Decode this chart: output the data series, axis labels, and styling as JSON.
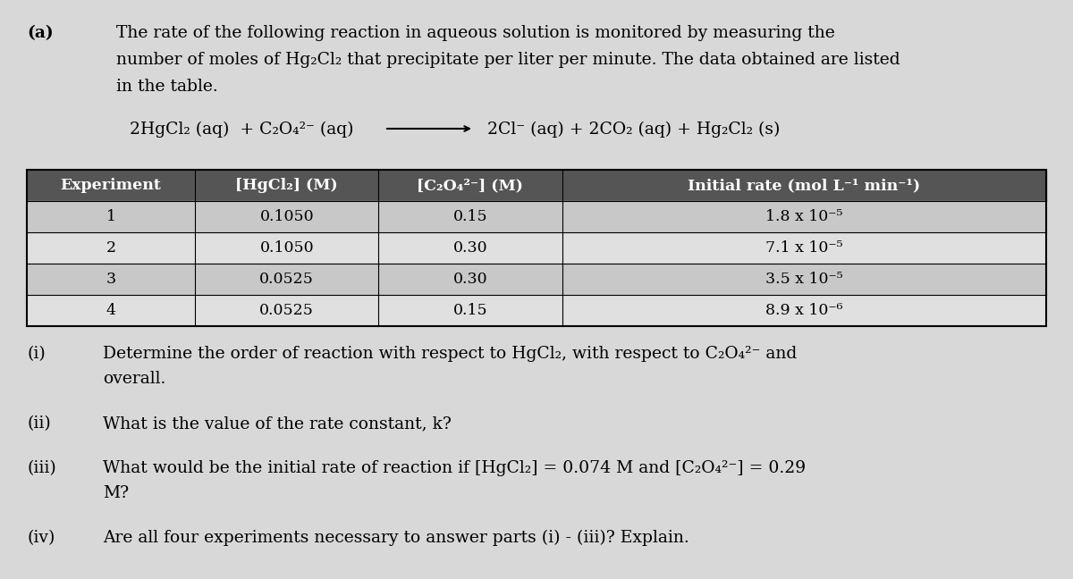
{
  "bg_color": "#d8d8d8",
  "label_a": "(a)",
  "intro_text_line1": "The rate of the following reaction in aqueous solution is monitored by measuring the",
  "intro_text_line2": "number of moles of Hg₂Cl₂ that precipitate per liter per minute. The data obtained are listed",
  "intro_text_line3": "in the table.",
  "equation_left": "2HgCl₂ (aq)  + C₂O₄²⁻ (aq)",
  "equation_arrow": "⟶",
  "equation_right": "2Cl⁻ (aq) + 2CO₂ (aq) + Hg₂Cl₂ (s)",
  "table_header": [
    "Experiment",
    "[HgCl₂] (M)",
    "[C₂O₄²⁻] (M)",
    "Initial rate (mol L⁻¹ min⁻¹)"
  ],
  "table_rows": [
    [
      "1",
      "0.1050",
      "0.15",
      "1.8 x 10⁻⁵"
    ],
    [
      "2",
      "0.1050",
      "0.30",
      "7.1 x 10⁻⁵"
    ],
    [
      "3",
      "0.0525",
      "0.30",
      "3.5 x 10⁻⁵"
    ],
    [
      "4",
      "0.0525",
      "0.15",
      "8.9 x 10⁻⁶"
    ]
  ],
  "questions": [
    [
      "(i)",
      "Determine the order of reaction with respect to HgCl₂, with respect to C₂O₄²⁻ and",
      "overall."
    ],
    [
      "(ii)",
      "What is the value of the rate constant, k?"
    ],
    [
      "(iii)",
      "What would be the initial rate of reaction if [HgCl₂] = 0.074 M and [C₂O₄²⁻] = 0.29",
      "M?"
    ],
    [
      "(iv)",
      "Are all four experiments necessary to answer parts (i) - (iii)? Explain."
    ]
  ],
  "header_bg": "#555555",
  "header_fg": "#ffffff",
  "row_bg_1": "#c8c8c8",
  "row_bg_2": "#e0e0e0",
  "font_size": 13.5,
  "eq_font_size": 13.5
}
